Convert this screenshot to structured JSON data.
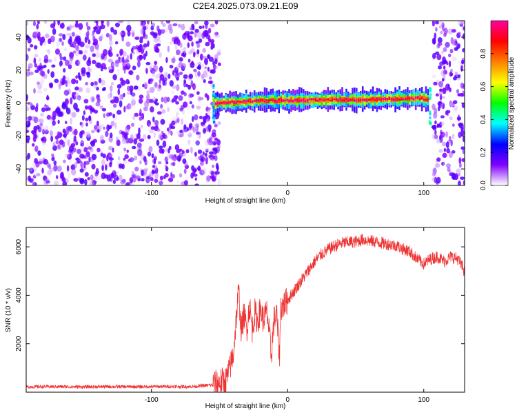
{
  "title": "C2E4.2025.073.09.21.E09",
  "chart_data": [
    {
      "type": "heatmap",
      "xlabel": "Height of straight line (km)",
      "ylabel": "Frequency (Hz)",
      "xlim": [
        -192,
        130
      ],
      "ylim": [
        -50,
        50
      ],
      "x_ticks": [
        -100,
        0,
        100
      ],
      "x_tick_labels": [
        "-100",
        "0",
        "100"
      ],
      "y_ticks": [
        -40,
        -20,
        0,
        20,
        40
      ],
      "y_tick_labels": [
        "-40",
        "-20",
        "0",
        "20",
        "40"
      ],
      "grid": false,
      "noise_regions_x": [
        [
          -192,
          -50
        ],
        [
          107,
          130
        ]
      ],
      "signal_ridge": {
        "x": [
          -55,
          -40,
          -20,
          0,
          20,
          40,
          60,
          80,
          95,
          103
        ],
        "freq": [
          0,
          0.5,
          1.5,
          1.5,
          1.8,
          2,
          2,
          2.5,
          3,
          2
        ]
      },
      "colorbar": {
        "label": "Normalized spectral amplitude",
        "range": [
          0,
          1
        ],
        "ticks": [
          0,
          0.2,
          0.4,
          0.6,
          0.8
        ],
        "tick_labels": [
          "0.0",
          "0.2",
          "0.4",
          "0.6",
          "0.8"
        ],
        "colors": [
          "#ffffff",
          "#8000ff",
          "#0000ff",
          "#00ffff",
          "#00ff00",
          "#ffff00",
          "#ff8000",
          "#ff0000",
          "#ff00a0"
        ]
      }
    },
    {
      "type": "line",
      "xlabel": "Height of straight line (km)",
      "ylabel": "SNR (10 * v/v)",
      "xlim": [
        -192,
        130
      ],
      "ylim": [
        0,
        6800
      ],
      "x_ticks": [
        -100,
        0,
        100
      ],
      "x_tick_labels": [
        "-100",
        "0",
        "100"
      ],
      "y_ticks": [
        2000,
        4000,
        6000
      ],
      "y_tick_labels": [
        "2000",
        "4000",
        "6000"
      ],
      "grid": false,
      "series": [
        {
          "color": "#ee3333",
          "x": [
            -192,
            -170,
            -150,
            -130,
            -110,
            -90,
            -70,
            -55,
            -45,
            -40,
            -36,
            -34,
            -32,
            -30,
            -28,
            -26,
            -24,
            -22,
            -20,
            -18,
            -15,
            -12,
            -10,
            -8,
            -6,
            -5,
            -3,
            0,
            5,
            10,
            15,
            20,
            25,
            30,
            35,
            40,
            45,
            50,
            55,
            60,
            65,
            70,
            75,
            80,
            85,
            90,
            95,
            100,
            105,
            110,
            115,
            120,
            125,
            130
          ],
          "y": [
            220,
            230,
            220,
            230,
            225,
            235,
            230,
            300,
            500,
            1500,
            4200,
            2500,
            3200,
            2600,
            3600,
            2600,
            3300,
            2900,
            3400,
            3000,
            3300,
            1500,
            3000,
            3200,
            1400,
            3500,
            3600,
            3800,
            4200,
            4600,
            5000,
            5400,
            5700,
            5900,
            6050,
            6150,
            6200,
            6200,
            6300,
            6250,
            6200,
            6150,
            6100,
            6050,
            5900,
            5800,
            5500,
            5300,
            5500,
            5600,
            5400,
            5600,
            5500,
            5000
          ]
        }
      ]
    }
  ]
}
